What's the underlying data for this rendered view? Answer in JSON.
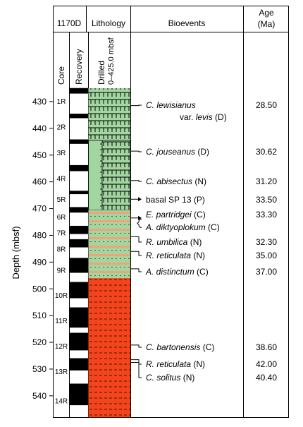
{
  "header": {
    "hole": "1170D",
    "lithology": "Lithology",
    "bioevents": "Bioevents",
    "age_line1": "Age",
    "age_line2": "(Ma)",
    "core": "Core",
    "recovery": "Recovery",
    "drilled_line1": "Drilled",
    "drilled_line2": "0–425.0 mbsf"
  },
  "depth_axis": {
    "label": "Depth (mbsf)",
    "ylim": [
      425,
      548
    ],
    "ticks": [
      430,
      440,
      450,
      460,
      470,
      480,
      490,
      500,
      510,
      520,
      530,
      540
    ]
  },
  "colors": {
    "green": "#a2d6a0",
    "red": "#f4441c",
    "orange": "#f1a27a",
    "ink": "#000000"
  },
  "cores": [
    {
      "name": "1R",
      "top": 425.0,
      "recovered": 2.0
    },
    {
      "name": "2R",
      "top": 434.6,
      "recovered": 1.6
    },
    {
      "name": "3R",
      "top": 444.2,
      "recovered": 1.6
    },
    {
      "name": "4R",
      "top": 453.8,
      "recovered": 2.2
    },
    {
      "name": "5R",
      "top": 463.4,
      "recovered": 1.2
    },
    {
      "name": "6R",
      "top": 469.5,
      "recovered": 2.0
    },
    {
      "name": "7R",
      "top": 476.5,
      "recovered": 3.0
    },
    {
      "name": "8R",
      "top": 481.5,
      "recovered": 3.0
    },
    {
      "name": "9R",
      "top": 488.5,
      "recovered": 5.5
    },
    {
      "name": "10R",
      "top": 497.5,
      "recovered": 6.0
    },
    {
      "name": "11R",
      "top": 507.0,
      "recovered": 7.5
    },
    {
      "name": "12R",
      "top": 516.5,
      "recovered": 6.5
    },
    {
      "name": "13R",
      "top": 526.0,
      "recovered": 4.5
    },
    {
      "name": "14R",
      "top": 535.5,
      "recovered": 8.0
    }
  ],
  "core_bottom": 548,
  "lithology": [
    {
      "top": 425,
      "bottom": 444.5,
      "column": "full",
      "pattern": "ticks"
    },
    {
      "top": 444.5,
      "bottom": 470.5,
      "column": "left",
      "pattern": "dashes"
    },
    {
      "top": 444.5,
      "bottom": 470.5,
      "column": "right",
      "pattern": "ticks"
    },
    {
      "top": 470.5,
      "bottom": 496,
      "column": "full",
      "pattern": "bands"
    },
    {
      "top": 496,
      "bottom": 548,
      "column": "full",
      "pattern": "red"
    }
  ],
  "bioevents": [
    {
      "taxon": "C. lewisianus",
      "depth": 431.5,
      "age": "28.50",
      "line2_prefix": "var.",
      "line2_taxon": "levis",
      "note": "(D)"
    },
    {
      "taxon": "C. jouseanus",
      "depth": 448.5,
      "age": "30.62",
      "note": "(D)"
    },
    {
      "taxon": "C. abisectus",
      "depth": 459.5,
      "age": "31.20",
      "note": "(N)"
    },
    {
      "plain": "basal SP 13",
      "depth": 466.5,
      "age": "33.50",
      "note": "(P)",
      "arrow": true
    },
    {
      "taxon": "E. partridgei",
      "depth": 473.5,
      "age": "33.30",
      "note": "(C)",
      "arrow": true
    },
    {
      "taxon": "A. diktyoplokum",
      "depth": 475.5,
      "note": "(C)"
    },
    {
      "taxon": "R. umbilica",
      "depth": 480.5,
      "age": "32.30",
      "note": "(N)"
    },
    {
      "taxon": "R. reticulata",
      "depth": 486.0,
      "age": "35.00",
      "note": "(N)"
    },
    {
      "taxon": "A. distinctum",
      "depth": 492.5,
      "age": "37.00",
      "note": "(C)"
    },
    {
      "taxon": "C. bartonensis",
      "depth": 521.0,
      "age": "38.60",
      "note": "(C)"
    },
    {
      "taxon": "R. reticulata",
      "depth": 526.5,
      "age": "42.00",
      "note": "(N)"
    },
    {
      "taxon": "C. solitus",
      "depth": 527.5,
      "age": "40.40",
      "note": "(N)"
    }
  ]
}
